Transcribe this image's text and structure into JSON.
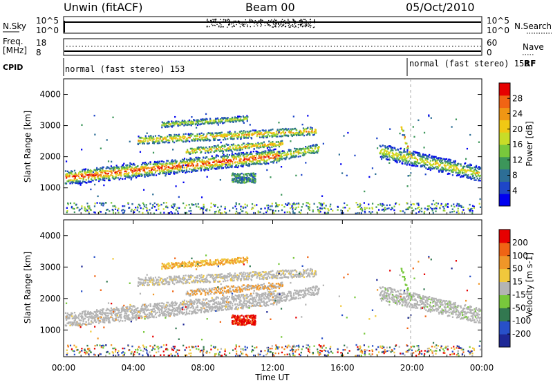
{
  "header": {
    "station": "Unwin (fitACF)",
    "beam": "Beam 00",
    "date": "05/Oct/2010"
  },
  "top_panels": {
    "nsky_label": "N.Sky",
    "nsky_ticks": [
      "10^5",
      "10^0"
    ],
    "nsearch_label": "N.Search",
    "freq_label": "Freq.",
    "freq_unit": "[MHz]",
    "freq_ticks": [
      "18",
      "8"
    ],
    "nave_label": "Nave",
    "nave_ticks": [
      "60",
      "0"
    ],
    "cpid_label": "CPID",
    "cpid_text_1": "normal (fast stereo) 153",
    "cpid_text_2": "normal (fast stereo) 153",
    "cpid_rf": "RF"
  },
  "chart_data": [
    {
      "type": "heatmap",
      "name": "power",
      "ylabel": "Slant Range [km]",
      "xlabel": "Time UT",
      "y_ticks": [
        "1000",
        "2000",
        "3000",
        "4000"
      ],
      "ylim": [
        150,
        4500
      ],
      "x_ticks": [
        "00:00",
        "04:00",
        "08:00",
        "12:00",
        "16:00",
        "20:00",
        "00:00"
      ],
      "colorbar_label": "Power [dB]",
      "colorbar_ticks": [
        "4",
        "8",
        "12",
        "16",
        "20",
        "24",
        "28"
      ],
      "colorbar_colors": [
        "#0000f0",
        "#1e46c8",
        "#2d6e96",
        "#3c965a",
        "#78c83c",
        "#c8dc28",
        "#f0c814",
        "#f09614",
        "#f06414",
        "#e60000"
      ]
    },
    {
      "type": "heatmap",
      "name": "velocity",
      "ylabel": "Slant Range [km]",
      "xlabel": "Time UT",
      "y_ticks": [
        "1000",
        "2000",
        "3000",
        "4000"
      ],
      "ylim": [
        150,
        4500
      ],
      "x_ticks": [
        "00:00",
        "04:00",
        "08:00",
        "12:00",
        "16:00",
        "20:00",
        "00:00"
      ],
      "colorbar_label": "Velocity [m s-1]",
      "colorbar_ticks": [
        "200",
        "100",
        "50",
        "15",
        "-15",
        "-50",
        "-100",
        "-200"
      ],
      "colorbar_colors": [
        "#1e2896",
        "#2850c8",
        "#327850",
        "#78c83c",
        "#b4b4b4",
        "#f0c83c",
        "#f09628",
        "#f06414",
        "#e60000"
      ],
      "ground_scatter_color": "#b4b4b4"
    }
  ],
  "axis_title": "Time UT"
}
